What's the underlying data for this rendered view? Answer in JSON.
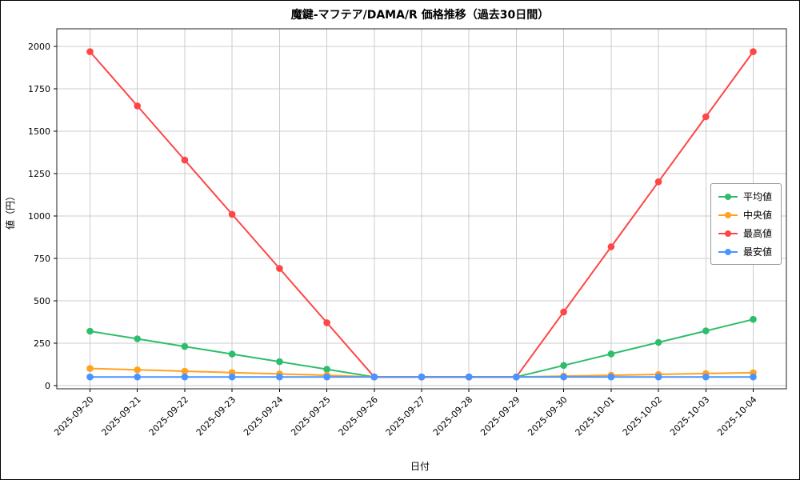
{
  "chart_data": {
    "type": "line",
    "title": "魔鍵-マフテア/DAMA/R 価格推移（過去30日間）",
    "xlabel": "日付",
    "ylabel": "値（円）",
    "categories": [
      "2025-09-20",
      "2025-09-21",
      "2025-09-22",
      "2025-09-23",
      "2025-09-24",
      "2025-09-25",
      "2025-09-26",
      "2025-09-27",
      "2025-09-28",
      "2025-09-29",
      "2025-09-30",
      "2025-10-01",
      "2025-10-02",
      "2025-10-03",
      "2025-10-04"
    ],
    "series": [
      {
        "name": "平均値",
        "color": "#2ebd6b",
        "values": [
          320,
          275,
          230,
          185,
          140,
          95,
          50,
          50,
          50,
          50,
          118,
          186,
          254,
          322,
          390
        ]
      },
      {
        "name": "中央値",
        "color": "#ffa21f",
        "values": [
          100,
          92,
          84,
          76,
          68,
          60,
          50,
          50,
          50,
          50,
          55,
          60,
          65,
          70,
          75
        ]
      },
      {
        "name": "最高値",
        "color": "#ff4545",
        "values": [
          1970,
          1650,
          1330,
          1010,
          690,
          370,
          50,
          50,
          50,
          50,
          434,
          818,
          1202,
          1586,
          1970
        ]
      },
      {
        "name": "最安値",
        "color": "#4a94ff",
        "values": [
          50,
          50,
          50,
          50,
          50,
          50,
          50,
          50,
          50,
          50,
          50,
          50,
          50,
          50,
          50
        ]
      }
    ],
    "yticks": [
      0,
      250,
      500,
      750,
      1000,
      1250,
      1500,
      1750,
      2000
    ],
    "ylim": [
      -20,
      2105
    ],
    "grid": true,
    "legend_position": "center-right",
    "colors": {
      "grid": "#cccccc",
      "spine": "#222222",
      "background": "#ffffff"
    }
  }
}
